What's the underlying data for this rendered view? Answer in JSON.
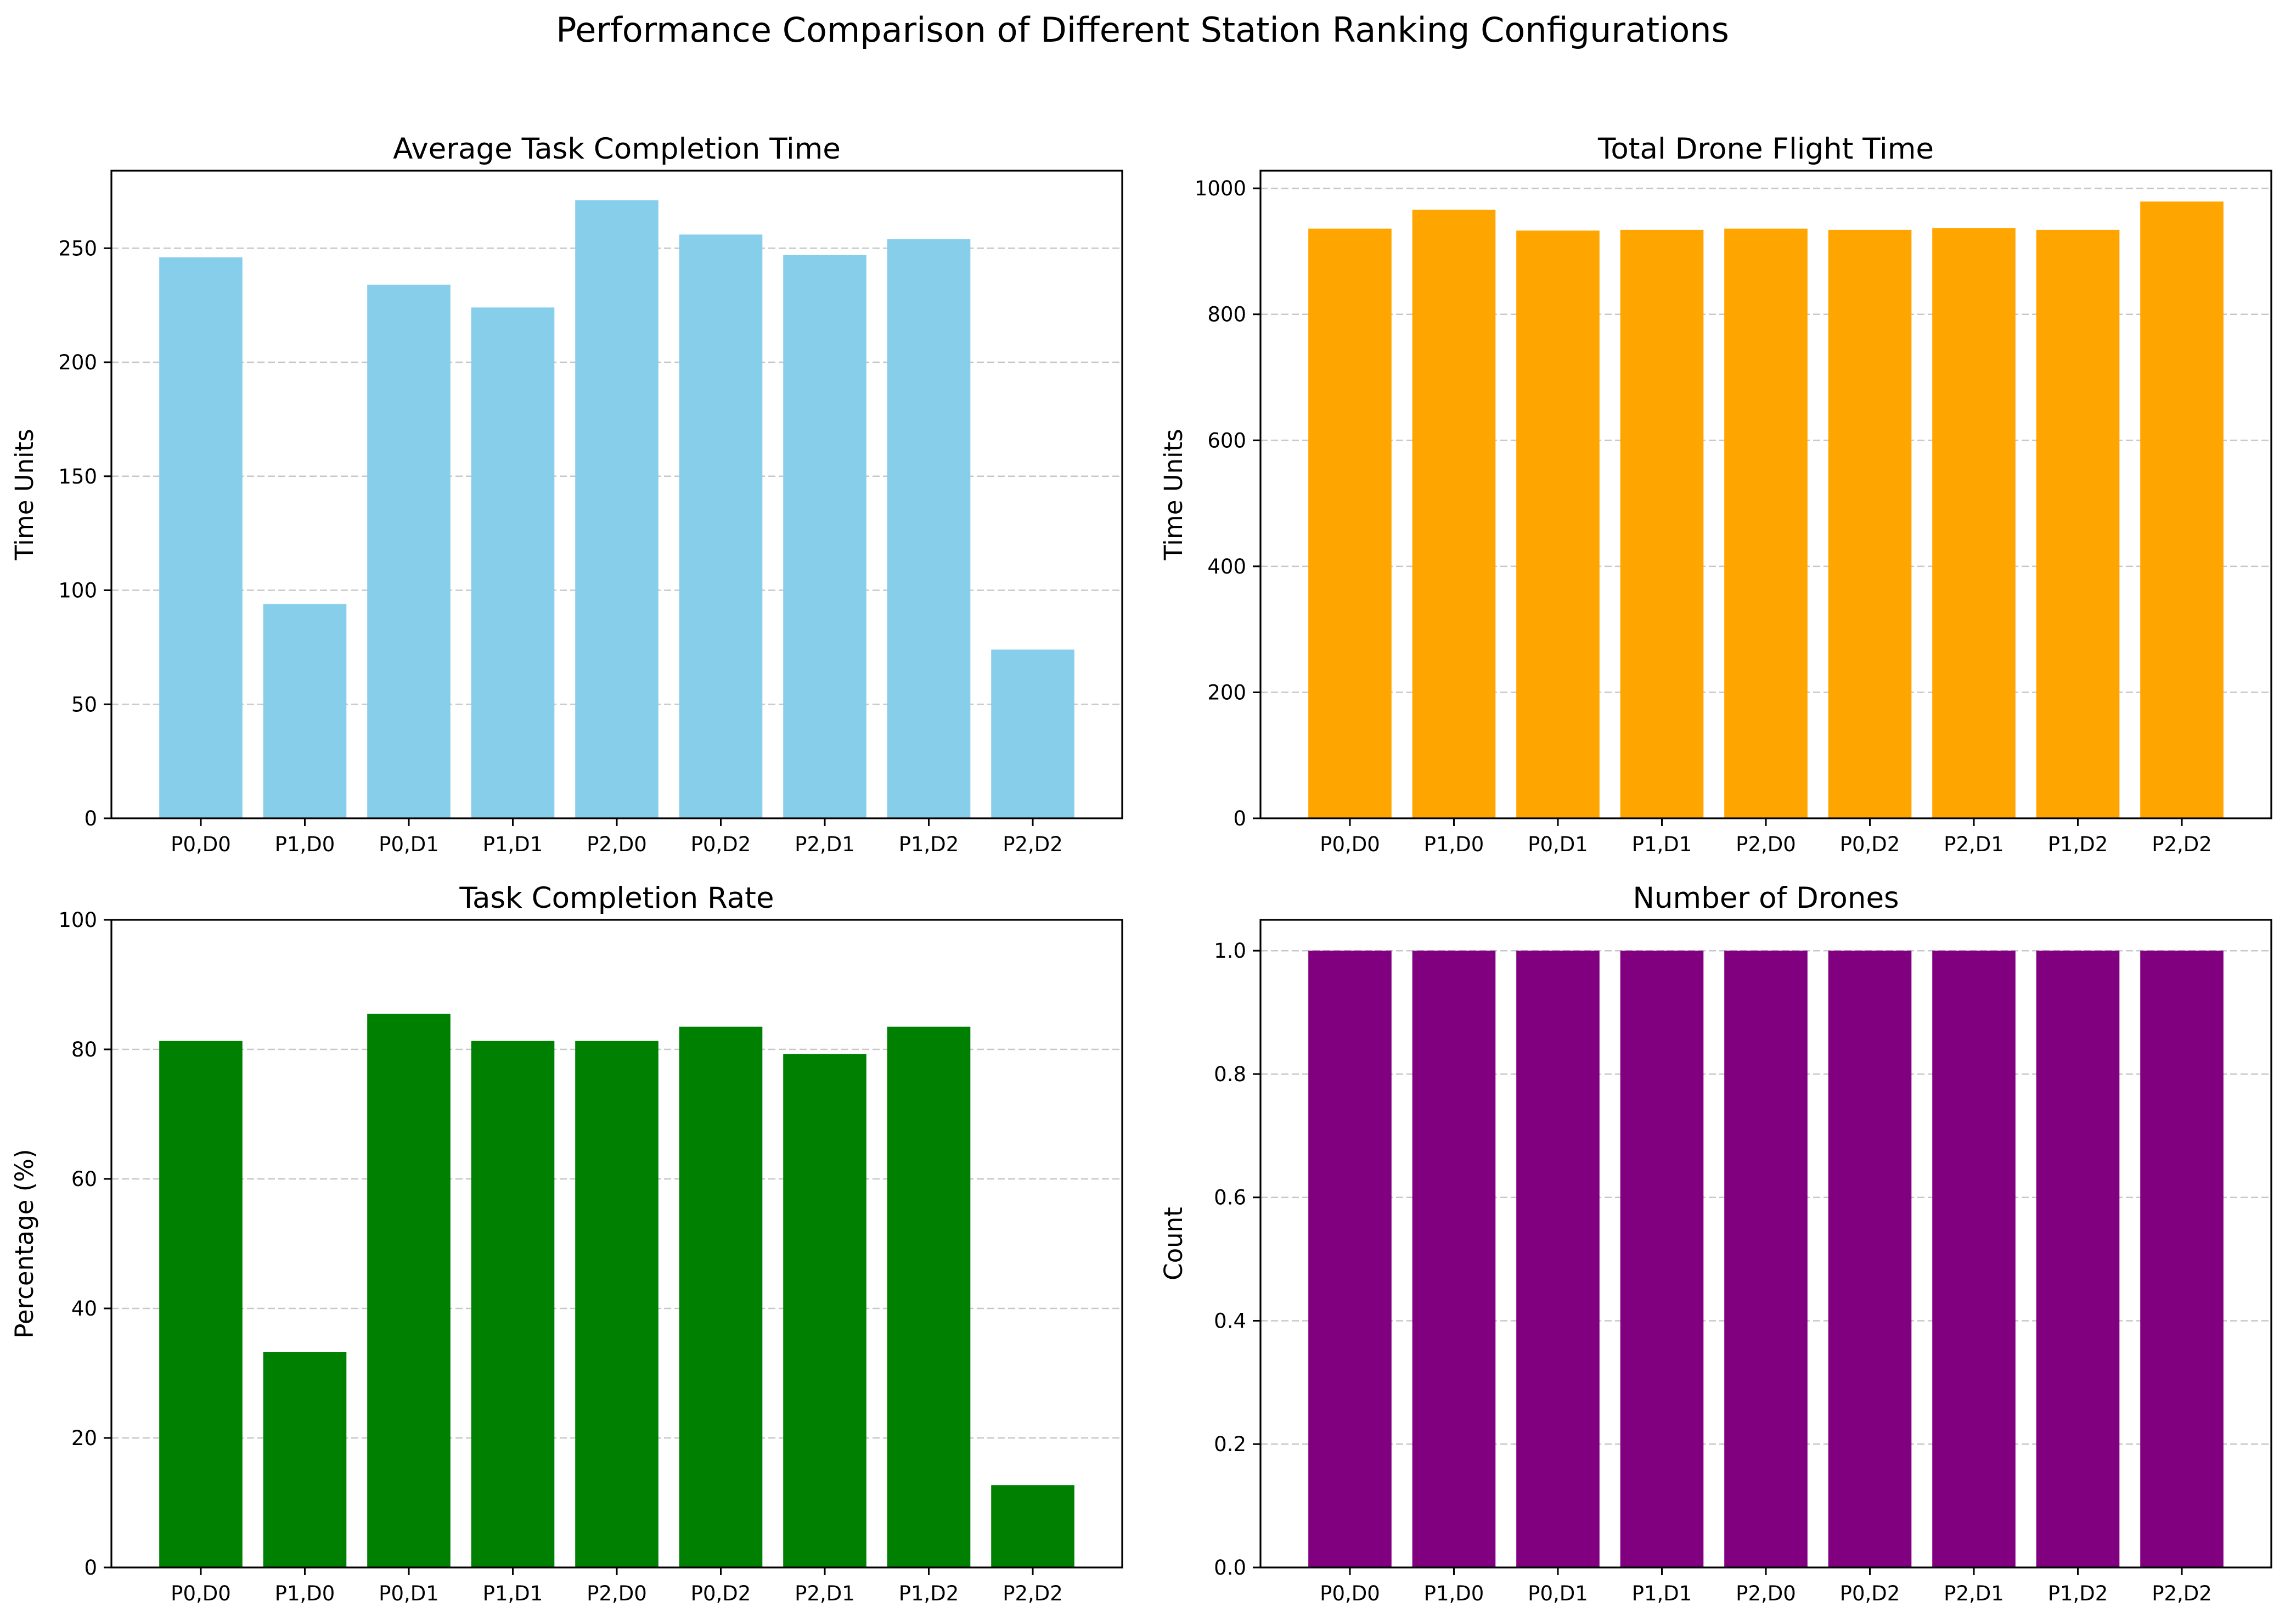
{
  "figure": {
    "title": "Performance Comparison of Different Station Ranking Configurations"
  },
  "chart_data": [
    {
      "type": "bar",
      "title": "Average Task Completion Time",
      "xlabel": "",
      "ylabel": "Time Units",
      "categories": [
        "P0,D0",
        "P1,D0",
        "P0,D1",
        "P1,D1",
        "P2,D0",
        "P0,D2",
        "P2,D1",
        "P1,D2",
        "P2,D2"
      ],
      "values": [
        246,
        94,
        234,
        224,
        271,
        256,
        247,
        254,
        74
      ],
      "ylim": [
        0,
        284
      ],
      "yticks": [
        0,
        50,
        100,
        150,
        200,
        250
      ],
      "ytick_labels": [
        "0",
        "50",
        "100",
        "150",
        "200",
        "250"
      ],
      "color": "#87ceeb",
      "grid": "y-dashed"
    },
    {
      "type": "bar",
      "title": "Total Drone Flight Time",
      "xlabel": "",
      "ylabel": "Time Units",
      "categories": [
        "P0,D0",
        "P1,D0",
        "P0,D1",
        "P1,D1",
        "P2,D0",
        "P0,D2",
        "P2,D1",
        "P1,D2",
        "P2,D2"
      ],
      "values": [
        936,
        966,
        933,
        934,
        936,
        934,
        937,
        934,
        979
      ],
      "ylim": [
        0,
        1028
      ],
      "yticks": [
        0,
        200,
        400,
        600,
        800,
        1000
      ],
      "ytick_labels": [
        "0",
        "200",
        "400",
        "600",
        "800",
        "1000"
      ],
      "color": "#ffa500",
      "grid": "y-dashed"
    },
    {
      "type": "bar",
      "title": "Task Completion Rate",
      "xlabel": "",
      "ylabel": "Percentage (%)",
      "categories": [
        "P0,D0",
        "P1,D0",
        "P0,D1",
        "P1,D1",
        "P2,D0",
        "P0,D2",
        "P2,D1",
        "P1,D2",
        "P2,D2"
      ],
      "values": [
        81.3,
        33.3,
        85.5,
        81.3,
        81.3,
        83.5,
        79.3,
        83.5,
        12.7
      ],
      "ylim": [
        0,
        100
      ],
      "yticks": [
        0,
        20,
        40,
        60,
        80,
        100
      ],
      "ytick_labels": [
        "0",
        "20",
        "40",
        "60",
        "80",
        "100"
      ],
      "color": "#008000",
      "grid": "y-dashed"
    },
    {
      "type": "bar",
      "title": "Number of Drones",
      "xlabel": "",
      "ylabel": "Count",
      "categories": [
        "P0,D0",
        "P1,D0",
        "P0,D1",
        "P1,D1",
        "P2,D0",
        "P0,D2",
        "P2,D1",
        "P1,D2",
        "P2,D2"
      ],
      "values": [
        1,
        1,
        1,
        1,
        1,
        1,
        1,
        1,
        1
      ],
      "ylim": [
        0,
        1.05
      ],
      "yticks": [
        0,
        0.2,
        0.4,
        0.6,
        0.8,
        1.0
      ],
      "ytick_labels": [
        "0.0",
        "0.2",
        "0.4",
        "0.6",
        "0.8",
        "1.0"
      ],
      "color": "#800080",
      "grid": "y-dashed"
    }
  ]
}
